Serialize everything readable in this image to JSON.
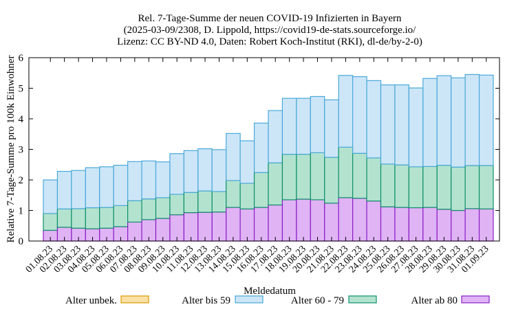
{
  "chart_data": {
    "type": "bar",
    "stacked": true,
    "title_lines": [
      "Rel. 7-Tage-Summe der neuen COVID-19 Infizierten in Bayern",
      "(2025-03-09/2308, D. Lippold, https://covid19-de-stats.sourceforge.io/",
      "Lizenz: CC BY-ND 4.0, Daten: Robert Koch-Institut (RKI), dl-de/by-2-0)"
    ],
    "xlabel": "Meldedatum",
    "ylabel": "Relative 7-Tage-Summe pro 100k Einwohner",
    "ylim": [
      0,
      6
    ],
    "yticks": [
      0,
      1,
      2,
      3,
      4,
      5,
      6
    ],
    "legend_position": "bottom",
    "categories": [
      "01.08.23",
      "02.08.23",
      "03.08.23",
      "04.08.23",
      "05.08.23",
      "06.08.23",
      "07.08.23",
      "08.08.23",
      "09.08.23",
      "10.08.23",
      "11.08.23",
      "12.08.23",
      "13.08.23",
      "14.08.23",
      "15.08.23",
      "16.08.23",
      "17.08.23",
      "18.08.23",
      "19.08.23",
      "20.08.23",
      "21.08.23",
      "22.08.23",
      "23.08.23",
      "24.08.23",
      "25.08.23",
      "26.08.23",
      "27.08.23",
      "28.08.23",
      "29.08.23",
      "30.08.23",
      "31.08.23",
      "01.09.23"
    ],
    "series": [
      {
        "name": "Alter ab 80",
        "color": "#e0b3f5",
        "edge": "#8b1fc4",
        "values": [
          0.35,
          0.45,
          0.42,
          0.4,
          0.42,
          0.47,
          0.62,
          0.7,
          0.74,
          0.86,
          0.93,
          0.94,
          0.95,
          1.1,
          1.05,
          1.1,
          1.18,
          1.35,
          1.37,
          1.35,
          1.24,
          1.42,
          1.4,
          1.31,
          1.12,
          1.1,
          1.09,
          1.1,
          1.04,
          1.0,
          1.06,
          1.05
        ]
      },
      {
        "name": "Alter 60 - 79",
        "color": "#b3e3cf",
        "edge": "#0f8f6a",
        "values": [
          0.55,
          0.6,
          0.64,
          0.69,
          0.68,
          0.69,
          0.7,
          0.68,
          0.68,
          0.67,
          0.66,
          0.7,
          0.67,
          0.88,
          0.84,
          1.14,
          1.38,
          1.49,
          1.47,
          1.54,
          1.5,
          1.65,
          1.47,
          1.41,
          1.4,
          1.39,
          1.34,
          1.34,
          1.44,
          1.42,
          1.41,
          1.42
        ]
      },
      {
        "name": "Alter bis 59",
        "color": "#cce6f8",
        "edge": "#4aa8d8",
        "values": [
          1.1,
          1.23,
          1.25,
          1.31,
          1.33,
          1.32,
          1.28,
          1.24,
          1.17,
          1.33,
          1.37,
          1.38,
          1.37,
          1.54,
          1.39,
          1.62,
          1.71,
          1.83,
          1.83,
          1.84,
          1.88,
          2.35,
          2.51,
          2.53,
          2.59,
          2.62,
          2.58,
          2.88,
          2.93,
          2.92,
          2.98,
          2.96
        ]
      },
      {
        "name": "Alter unbek.",
        "color": "#fbe0a6",
        "edge": "#d89a00",
        "values": [
          0,
          0,
          0,
          0,
          0,
          0,
          0,
          0,
          0,
          0,
          0,
          0,
          0,
          0,
          0,
          0,
          0,
          0,
          0,
          0,
          0,
          0,
          0,
          0,
          0,
          0,
          0,
          0,
          0,
          0,
          0,
          0
        ]
      }
    ],
    "legend": [
      "Alter unbek.",
      "Alter bis 59",
      "Alter 60 - 79",
      "Alter ab 80"
    ]
  }
}
